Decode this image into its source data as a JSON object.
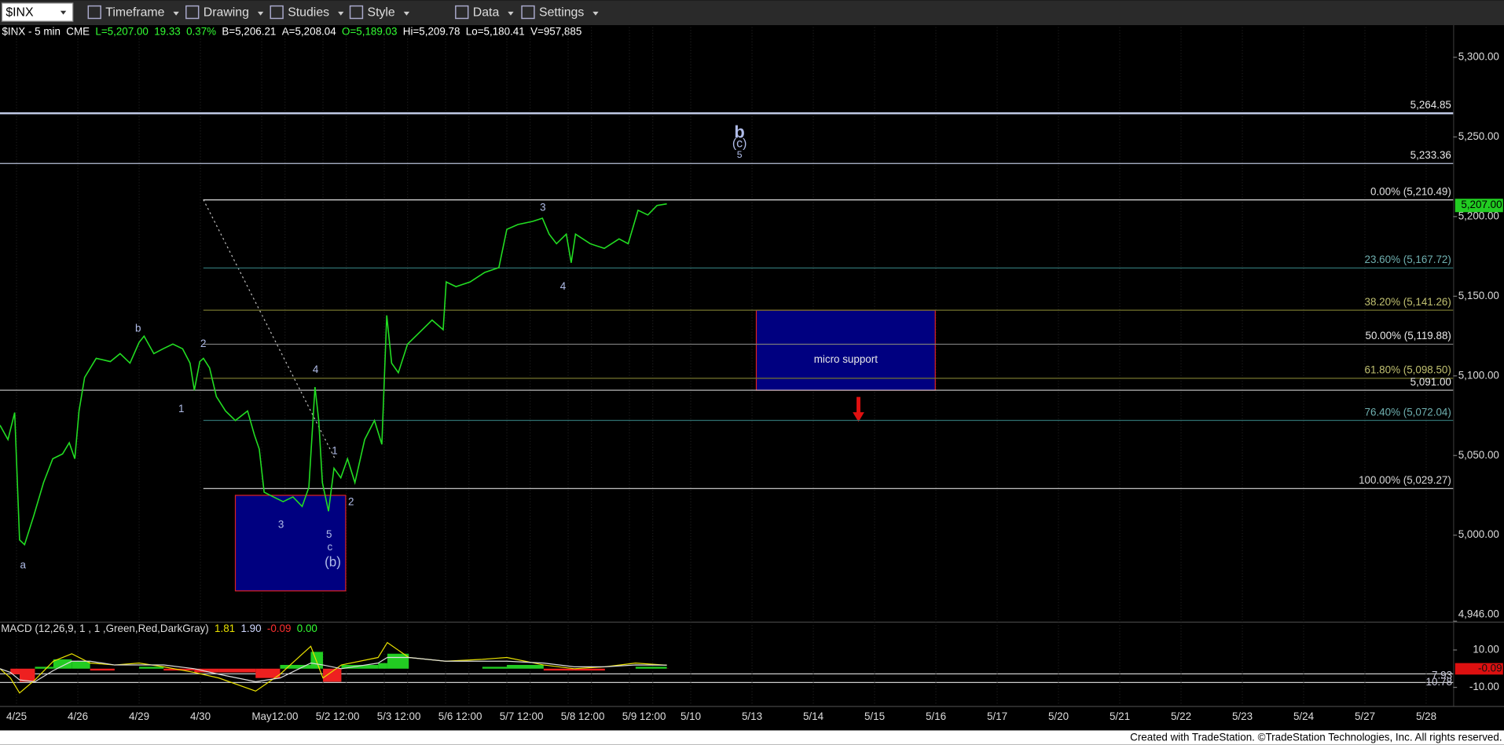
{
  "toolbar": {
    "symbol": "$INX",
    "menus": [
      "Timeframe",
      "Drawing",
      "Studies",
      "Style",
      "Data",
      "Settings"
    ]
  },
  "info": {
    "items": [
      {
        "text": "$INX - 5 min",
        "color": "#ffffff"
      },
      {
        "text": "CME",
        "color": "#ffffff"
      },
      {
        "text": "L=5,207.00",
        "color": "#33ff33"
      },
      {
        "text": "19.33",
        "color": "#33ff33"
      },
      {
        "text": "0.37%",
        "color": "#33ff33"
      },
      {
        "text": "B=5,206.21",
        "color": "#ffffff"
      },
      {
        "text": "A=5,208.04",
        "color": "#ffffff"
      },
      {
        "text": "O=5,189.03",
        "color": "#33ff33"
      },
      {
        "text": "Hi=5,209.78",
        "color": "#ffffff"
      },
      {
        "text": "Lo=5,180.41",
        "color": "#ffffff"
      },
      {
        "text": "V=957,885",
        "color": "#ffffff"
      }
    ]
  },
  "chart_data": [
    {
      "type": "line",
      "x": [
        -0.27,
        -0.14,
        -0.03,
        0.05,
        0.13,
        0.28,
        0.44,
        0.59,
        0.75,
        0.86,
        0.95,
        1.02,
        1.11,
        1.3,
        1.53,
        1.69,
        1.85,
        2.0,
        2.08,
        2.24,
        2.39,
        2.55,
        2.71,
        2.83,
        2.9,
        2.99,
        3.05,
        3.15,
        3.26,
        3.41,
        3.57,
        3.77,
        3.88,
        3.96,
        4.04,
        4.19,
        4.35,
        4.51,
        4.66,
        4.77,
        4.87,
        4.93,
        4.99,
        5.09,
        5.18,
        5.29,
        5.4,
        5.52,
        5.68,
        5.84,
        5.96,
        6.04,
        6.12,
        6.23,
        6.38,
        6.62,
        6.78,
        6.96,
        7.01,
        7.17,
        7.4,
        7.64,
        7.87,
        8.0,
        8.18,
        8.42,
        8.58,
        8.69,
        8.81,
        8.97,
        9.05,
        9.12,
        9.36,
        9.59,
        9.83,
        9.98,
        10.14,
        10.3,
        10.45,
        10.61
      ],
      "series": [
        {
          "color": "#22dd22",
          "values": [
            5069,
            5060,
            5077,
            4997,
            4994,
            5012,
            5033,
            5048,
            5051,
            5058,
            5048,
            5078,
            5099,
            5111,
            5109,
            5114,
            5108,
            5121,
            5125,
            5114,
            5117,
            5120,
            5117,
            5108,
            5091,
            5109,
            5111,
            5105,
            5087,
            5078,
            5072,
            5078,
            5063,
            5054,
            5027,
            5024,
            5021,
            5024,
            5018,
            5030,
            5093,
            5072,
            5033,
            5015,
            5042,
            5036,
            5048,
            5033,
            5060,
            5072,
            5057,
            5138,
            5108,
            5102,
            5120,
            5129,
            5135,
            5129,
            5159,
            5156,
            5159,
            5165,
            5168,
            5192,
            5195,
            5197,
            5199,
            5189,
            5183,
            5189,
            5171,
            5189,
            5183,
            5180,
            5186,
            5183,
            5204,
            5201,
            5207,
            5208
          ]
        }
      ],
      "xlim": [
        -0.27,
        23.44
      ],
      "ylim": [
        4946,
        5319
      ],
      "yticks": [
        {
          "value": 4946,
          "label": "4,946.00"
        },
        {
          "value": 5000,
          "label": "5,000.00"
        },
        {
          "value": 5050,
          "label": "5,050.00"
        },
        {
          "value": 5100,
          "label": "5,100.00"
        },
        {
          "value": 5150,
          "label": "5,150.00"
        },
        {
          "value": 5200,
          "label": "5,200.00"
        },
        {
          "value": 5250,
          "label": "5,250.00"
        },
        {
          "value": 5300,
          "label": "5,300.00"
        }
      ],
      "xticks": [
        {
          "value": 0,
          "label": "4/25"
        },
        {
          "value": 1,
          "label": "4/26"
        },
        {
          "value": 2,
          "label": "4/29"
        },
        {
          "value": 3,
          "label": "4/30"
        },
        {
          "value": 4,
          "label": "May"
        },
        {
          "value": 4.38,
          "label": "12:00"
        },
        {
          "value": 5,
          "label": "5/2"
        },
        {
          "value": 5.38,
          "label": "12:00"
        },
        {
          "value": 6,
          "label": "5/3"
        },
        {
          "value": 6.38,
          "label": "12:00"
        },
        {
          "value": 7,
          "label": "5/6"
        },
        {
          "value": 7.38,
          "label": "12:00"
        },
        {
          "value": 8,
          "label": "5/7"
        },
        {
          "value": 8.38,
          "label": "12:00"
        },
        {
          "value": 9,
          "label": "5/8"
        },
        {
          "value": 9.38,
          "label": "12:00"
        },
        {
          "value": 10,
          "label": "5/9"
        },
        {
          "value": 10.38,
          "label": "12:00"
        },
        {
          "value": 11,
          "label": "5/10"
        },
        {
          "value": 12,
          "label": "5/13"
        },
        {
          "value": 13,
          "label": "5/14"
        },
        {
          "value": 14,
          "label": "5/15"
        },
        {
          "value": 15,
          "label": "5/16"
        },
        {
          "value": 16,
          "label": "5/17"
        },
        {
          "value": 17,
          "label": "5/20"
        },
        {
          "value": 18,
          "label": "5/21"
        },
        {
          "value": 19,
          "label": "5/22"
        },
        {
          "value": 20,
          "label": "5/23"
        },
        {
          "value": 21,
          "label": "5/24"
        },
        {
          "value": 22,
          "label": "5/27"
        },
        {
          "value": 23,
          "label": "5/28"
        }
      ],
      "levels": [
        {
          "value": 5264.85,
          "label": "5,264.85",
          "color": "#c8d2f0",
          "style": "full",
          "width": 2
        },
        {
          "value": 5233.36,
          "label": "5,233.36",
          "color": "#b8c0d8",
          "style": "full",
          "width": 1
        },
        {
          "value": 5210.49,
          "label": "0.00% (5,210.49)",
          "color": "#e0e0e0",
          "style": "fib",
          "width": 1
        },
        {
          "value": 5167.72,
          "label": "23.60% (5,167.72)",
          "color": "#2f7070",
          "style": "fib",
          "width": 1
        },
        {
          "value": 5141.26,
          "label": "38.20% (5,141.26)",
          "color": "#75752e",
          "style": "fib",
          "width": 1
        },
        {
          "value": 5119.88,
          "label": "50.00% (5,119.88)",
          "color": "#7a7a7a",
          "style": "fib",
          "width": 1
        },
        {
          "value": 5098.5,
          "label": "61.80% (5,098.50)",
          "color": "#75752e",
          "style": "fib",
          "width": 1
        },
        {
          "value": 5091.0,
          "label": "5,091.00",
          "color": "#d0d0d0",
          "style": "full",
          "width": 1
        },
        {
          "value": 5072.04,
          "label": "76.40% (5,072.04)",
          "color": "#2f7070",
          "style": "fib",
          "width": 1
        },
        {
          "value": 5029.27,
          "label": "100.00% (5,029.27)",
          "color": "#d8d8d8",
          "style": "fib",
          "width": 1
        }
      ],
      "last_price": {
        "value": 5207,
        "label": "5,207.00",
        "color": "#22cc22"
      },
      "boxes": [
        {
          "x": [
            12.07,
            14.99
          ],
          "y": [
            5091,
            5141.26
          ],
          "label": "micro support",
          "color": "#000080",
          "border": "#dd2222"
        },
        {
          "x": [
            3.57,
            5.37
          ],
          "y": [
            4965,
            5025
          ],
          "color": "#000080",
          "border": "#dd2222"
        }
      ],
      "annotations": [
        "b",
        "(c)",
        "5",
        "3",
        "4",
        "b",
        "2",
        "1",
        "4",
        "a",
        "3",
        "5",
        "c",
        "(b)",
        "1",
        "2"
      ]
    },
    {
      "type": "macd",
      "title": "MACD (12,26,9, 1 , 1 ,Green,Red,DarkGray)",
      "readout": [
        {
          "text": "1.81",
          "color": "#e8e000"
        },
        {
          "text": "1.90",
          "color": "#cfd8ff"
        },
        {
          "text": "-0.09",
          "color": "#ff3030"
        },
        {
          "text": "0.00",
          "color": "#33ff33"
        }
      ],
      "x": [
        -0.27,
        -0.1,
        0.05,
        0.3,
        0.6,
        0.9,
        1.2,
        1.6,
        2.0,
        2.4,
        2.9,
        3.3,
        3.9,
        4.3,
        4.8,
        5.0,
        5.3,
        5.9,
        6.05,
        6.4,
        7.0,
        7.6,
        8.0,
        8.6,
        9.1,
        9.6,
        10.1,
        10.61
      ],
      "series": [
        {
          "color": "#e8e000",
          "values": [
            0,
            -5,
            -13,
            -6,
            4,
            8,
            3,
            2,
            3,
            1,
            -2,
            -5,
            -12,
            -3,
            12,
            -5,
            2,
            6,
            14,
            6,
            4,
            5,
            6,
            2,
            0,
            1,
            3,
            1.81
          ]
        },
        {
          "color": "#dddddd",
          "values": [
            0,
            -2,
            -6,
            -7,
            -1,
            4,
            4,
            2,
            2,
            2,
            0,
            -3,
            -7,
            -5,
            3,
            2,
            0,
            3,
            6,
            6,
            4,
            4,
            4,
            3,
            1,
            1,
            2,
            1.9
          ]
        }
      ],
      "hist": {
        "pos_color": "#22cc22",
        "neg_color": "#ee2020",
        "values": [
          0,
          -3,
          -7,
          1,
          5,
          4,
          -1,
          0,
          1,
          -1,
          -2,
          -2,
          -5,
          2,
          9,
          -7,
          2,
          3,
          8,
          0,
          0,
          1,
          2,
          -1,
          -1,
          0,
          1,
          -0.09
        ]
      },
      "ylim": [
        -19.2,
        24.4
      ],
      "yticks": [
        {
          "value": 10,
          "label": "10.00"
        },
        {
          "value": -10,
          "label": "-10.00"
        }
      ],
      "last_label": {
        "value": -0.09,
        "label": "-0.09",
        "color": "#dd1010"
      },
      "side_labels": [
        "7.93",
        "10.78"
      ]
    }
  ],
  "footer": "Created with TradeStation. ©TradeStation Technologies, Inc. All rights reserved."
}
